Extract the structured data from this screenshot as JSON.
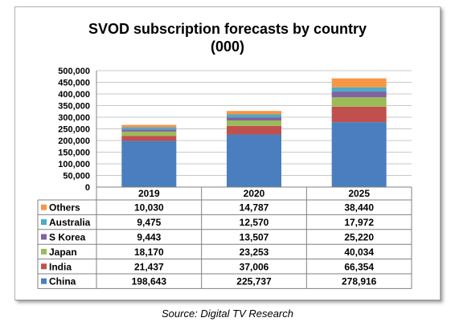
{
  "chart_data": {
    "type": "bar",
    "stacked": true,
    "title": "SVOD subscription forecasts by country",
    "subtitle": "(000)",
    "categories": [
      "2019",
      "2020",
      "2025"
    ],
    "ylim": [
      0,
      500000
    ],
    "yticks": [
      "0",
      "50,000",
      "100,000",
      "150,000",
      "200,000",
      "250,000",
      "300,000",
      "350,000",
      "400,000",
      "450,000",
      "500,000"
    ],
    "grid": true,
    "legend_placement": "data-table",
    "series": [
      {
        "name": "China",
        "color": "#4a7ebf",
        "values": [
          198643,
          225737,
          278916
        ],
        "labels": [
          "198,643",
          "225,737",
          "278,916"
        ]
      },
      {
        "name": "India",
        "color": "#c0504d",
        "values": [
          21437,
          37006,
          66354
        ],
        "labels": [
          "21,437",
          "37,006",
          "66,354"
        ]
      },
      {
        "name": "Japan",
        "color": "#9bbb59",
        "values": [
          18170,
          23253,
          40034
        ],
        "labels": [
          "18,170",
          "23,253",
          "40,034"
        ]
      },
      {
        "name": "S Korea",
        "color": "#8064a2",
        "values": [
          9443,
          13507,
          25220
        ],
        "labels": [
          "9,443",
          "13,507",
          "25,220"
        ]
      },
      {
        "name": "Australia",
        "color": "#4bacc6",
        "values": [
          9475,
          12570,
          17972
        ],
        "labels": [
          "9,475",
          "12,570",
          "17,972"
        ]
      },
      {
        "name": "Others",
        "color": "#f79646",
        "values": [
          10030,
          14787,
          38440
        ],
        "labels": [
          "10,030",
          "14,787",
          "38,440"
        ]
      }
    ]
  },
  "source": "Source: Digital TV Research"
}
